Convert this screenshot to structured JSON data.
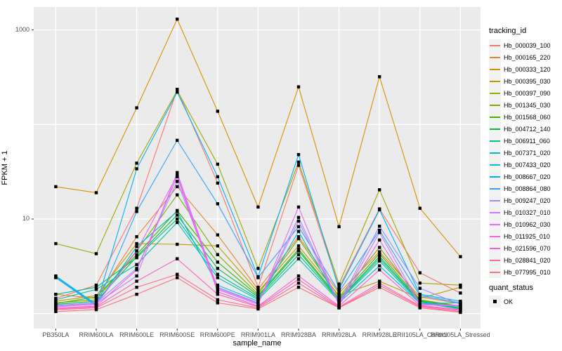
{
  "chart_data": {
    "type": "line",
    "title": "",
    "xlabel": "sample_name",
    "ylabel": "FPKM + 1",
    "y_scale": "log10",
    "y_tick_labels": [
      "1000",
      "10"
    ],
    "y_tick_values": [
      1000,
      10
    ],
    "y_gridline_values": [
      1,
      10,
      100,
      1000
    ],
    "ylim": [
      1,
      1500
    ],
    "x_categories": [
      "PB350LA",
      "RRIM600LA",
      "RRIM600LE",
      "RRIM600SE",
      "RRIM600PE",
      "RRIM901LA",
      "RRIM928BA",
      "RRIM928LA",
      "RRIM928LE",
      "RRII105LA_Control",
      "RRII105LA_Stressed"
    ],
    "legend_title": "tracking_id",
    "legend_position": "right",
    "panel_bg": "#ebebeb",
    "grid_color": "#ffffff",
    "point_color": "#000000",
    "tick_color": "#333333",
    "series": [
      {
        "name": "Hb_000039_100",
        "color": "#F8766D",
        "values": [
          1.45,
          2.0,
          13.0,
          235,
          24,
          1.9,
          37,
          1.9,
          12.8,
          2.7,
          1.65
        ]
      },
      {
        "name": "Hb_000165_220",
        "color": "#EA8331",
        "values": [
          1.6,
          1.45,
          6.5,
          22,
          6.8,
          1.8,
          6.5,
          1.65,
          4.5,
          1.5,
          1.28
        ]
      },
      {
        "name": "Hb_000333_120",
        "color": "#D89000",
        "values": [
          22,
          19,
          150,
          1300,
          138,
          13.4,
          250,
          8.3,
          320,
          13,
          4.0
        ]
      },
      {
        "name": "Hb_000395_030",
        "color": "#C09B00",
        "values": [
          1.35,
          1.55,
          5.5,
          5.4,
          5.2,
          1.7,
          5.2,
          1.55,
          2.2,
          1.45,
          1.9
        ]
      },
      {
        "name": "Hb_000397_090",
        "color": "#A3A500",
        "values": [
          5.5,
          4.3,
          39,
          228,
          38,
          3.0,
          40,
          2.05,
          20.4,
          2.1,
          2.0
        ]
      },
      {
        "name": "Hb_001345_030",
        "color": "#7CAE00",
        "values": [
          1.3,
          1.4,
          4.6,
          18,
          4.2,
          1.6,
          6.2,
          1.5,
          5.0,
          1.4,
          1.2
        ]
      },
      {
        "name": "Hb_001568_060",
        "color": "#39B600",
        "values": [
          1.28,
          1.5,
          4.2,
          12.3,
          3.5,
          1.55,
          4.8,
          1.45,
          4.3,
          1.38,
          1.18
        ]
      },
      {
        "name": "Hb_004712_140",
        "color": "#00BB4E",
        "values": [
          1.25,
          1.35,
          4.0,
          11,
          3.0,
          1.5,
          4.6,
          1.4,
          4.0,
          1.35,
          1.15
        ]
      },
      {
        "name": "Hb_006911_060",
        "color": "#00C087",
        "values": [
          1.6,
          1.9,
          3.9,
          10,
          2.6,
          1.45,
          4.2,
          1.38,
          3.8,
          1.33,
          1.13
        ]
      },
      {
        "name": "Hb_007371_020",
        "color": "#00C0B4",
        "values": [
          1.4,
          1.8,
          3.3,
          9.2,
          2.4,
          1.4,
          3.8,
          1.35,
          3.6,
          1.3,
          1.12
        ]
      },
      {
        "name": "Hb_007433_020",
        "color": "#00BCD8",
        "values": [
          2.5,
          1.25,
          5.1,
          12,
          2.0,
          1.35,
          7.4,
          1.3,
          3.2,
          1.28,
          1.3
        ]
      },
      {
        "name": "Hb_008667_020",
        "color": "#00B0F6",
        "values": [
          2.45,
          1.22,
          34,
          220,
          28,
          2.45,
          48,
          1.8,
          12.5,
          1.6,
          1.35
        ]
      },
      {
        "name": "Hb_008864_080",
        "color": "#35A2FF",
        "values": [
          2.4,
          1.2,
          12,
          68,
          14.5,
          2.4,
          8.3,
          1.7,
          7.6,
          1.55,
          1.3
        ]
      },
      {
        "name": "Hb_009247_020",
        "color": "#9590FF",
        "values": [
          1.22,
          1.3,
          3.0,
          25,
          1.9,
          1.3,
          10.4,
          1.28,
          8.4,
          1.85,
          1.25
        ]
      },
      {
        "name": "Hb_010327_010",
        "color": "#C77CFF",
        "values": [
          1.2,
          1.28,
          2.5,
          31,
          1.85,
          1.28,
          9.5,
          1.25,
          7.2,
          1.26,
          1.22
        ]
      },
      {
        "name": "Hb_010962_030",
        "color": "#E76BF3",
        "values": [
          1.18,
          1.25,
          4.6,
          29,
          1.8,
          1.25,
          13.4,
          1.22,
          6.0,
          1.24,
          1.2
        ]
      },
      {
        "name": "Hb_011925_010",
        "color": "#FA62DB",
        "values": [
          1.15,
          1.2,
          2.9,
          28,
          1.7,
          1.2,
          2.5,
          1.2,
          2.9,
          1.22,
          1.1
        ]
      },
      {
        "name": "Hb_021596_070",
        "color": "#FF62BC",
        "values": [
          1.12,
          1.18,
          2.2,
          3.8,
          1.6,
          1.18,
          2.3,
          1.17,
          2.1,
          1.2,
          1.08
        ]
      },
      {
        "name": "Hb_028841_020",
        "color": "#FF6A98",
        "values": [
          1.1,
          1.15,
          1.9,
          2.6,
          1.4,
          1.15,
          2.1,
          1.15,
          2.0,
          1.18,
          1.05
        ]
      },
      {
        "name": "Hb_077995_010",
        "color": "#FC717F",
        "values": [
          1.05,
          1.1,
          1.6,
          2.4,
          1.3,
          1.12,
          1.9,
          1.15,
          1.9,
          1.15,
          1.03
        ]
      }
    ],
    "quant_status": {
      "title": "quant_status",
      "items": [
        {
          "label": "OK",
          "marker": "black-square"
        }
      ]
    }
  }
}
